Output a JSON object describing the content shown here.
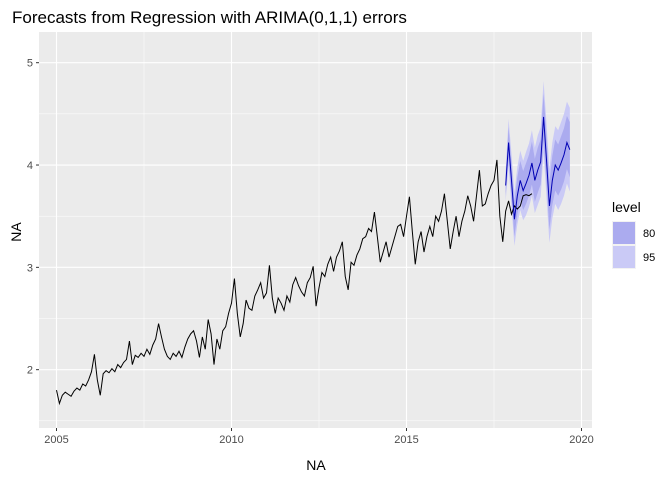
{
  "chart_data": {
    "type": "line",
    "title": "Forecasts from Regression with ARIMA(0,1,1) errors",
    "xlabel": "NA",
    "ylabel": "NA",
    "xlim": [
      2004.5,
      2020.3
    ],
    "ylim": [
      1.43,
      5.3
    ],
    "x_ticks": [
      2005,
      2010,
      2015,
      2020
    ],
    "y_ticks": [
      2,
      3,
      4,
      5
    ],
    "grid": true,
    "legend": {
      "title": "level",
      "position": "right",
      "entries": [
        {
          "label": "80",
          "color": "#ababef"
        },
        {
          "label": "95",
          "color": "#cacaf6"
        }
      ]
    },
    "colors": {
      "panel_bg": "#ebebeb",
      "grid_major": "#ffffff",
      "history_line": "#000000",
      "forecast_line": "#0000b3",
      "band80": "#ababef",
      "band95": "#cacaf6"
    },
    "series": [
      {
        "name": "history",
        "start": 2005.0,
        "frequency": 12,
        "values": [
          1.8,
          1.67,
          1.75,
          1.78,
          1.76,
          1.74,
          1.79,
          1.82,
          1.8,
          1.86,
          1.84,
          1.9,
          1.98,
          2.15,
          1.9,
          1.75,
          1.96,
          1.99,
          1.97,
          2.01,
          1.98,
          2.05,
          2.02,
          2.07,
          2.1,
          2.28,
          2.05,
          2.14,
          2.12,
          2.16,
          2.13,
          2.2,
          2.15,
          2.24,
          2.3,
          2.45,
          2.32,
          2.2,
          2.13,
          2.1,
          2.16,
          2.13,
          2.18,
          2.12,
          2.22,
          2.3,
          2.35,
          2.38,
          2.28,
          2.12,
          2.32,
          2.2,
          2.49,
          2.35,
          2.05,
          2.3,
          2.2,
          2.38,
          2.42,
          2.55,
          2.65,
          2.89,
          2.55,
          2.32,
          2.45,
          2.68,
          2.6,
          2.58,
          2.72,
          2.78,
          2.85,
          2.7,
          2.75,
          3.02,
          2.7,
          2.55,
          2.7,
          2.65,
          2.58,
          2.72,
          2.66,
          2.83,
          2.9,
          2.82,
          2.76,
          2.72,
          2.85,
          2.9,
          3.01,
          2.62,
          2.8,
          2.95,
          2.91,
          3.03,
          3.1,
          2.96,
          3.1,
          3.16,
          3.25,
          2.91,
          2.78,
          3.05,
          3.02,
          3.12,
          3.18,
          3.28,
          3.3,
          3.38,
          3.35,
          3.54,
          3.3,
          3.05,
          3.15,
          3.25,
          3.1,
          3.2,
          3.3,
          3.4,
          3.42,
          3.3,
          3.5,
          3.69,
          3.35,
          3.03,
          3.25,
          3.35,
          3.15,
          3.3,
          3.4,
          3.3,
          3.5,
          3.45,
          3.55,
          3.72,
          3.45,
          3.18,
          3.35,
          3.5,
          3.3,
          3.45,
          3.55,
          3.7,
          3.6,
          3.45,
          3.7,
          3.95,
          3.6,
          3.62,
          3.72,
          3.8,
          3.85,
          4.05,
          3.5,
          3.25,
          3.55,
          3.65,
          3.52,
          3.6,
          3.57,
          3.6,
          3.7,
          3.71,
          3.7,
          3.72
        ]
      },
      {
        "name": "forecast",
        "start": 2017.8333,
        "frequency": 12,
        "values": [
          3.8,
          4.22,
          3.85,
          3.47,
          3.7,
          3.85,
          3.75,
          3.82,
          3.9,
          4.02,
          3.85,
          3.95,
          4.03,
          4.47,
          4.05,
          3.6,
          3.85,
          4.0,
          3.95,
          4.02,
          4.1,
          4.22,
          4.15
        ],
        "lo80": [
          3.7,
          4.07,
          3.68,
          3.3,
          3.52,
          3.66,
          3.56,
          3.62,
          3.7,
          3.81,
          3.64,
          3.73,
          3.81,
          4.24,
          3.82,
          3.37,
          3.61,
          3.75,
          3.7,
          3.76,
          3.84,
          3.96,
          3.88
        ],
        "hi80": [
          3.9,
          4.37,
          4.02,
          3.64,
          3.88,
          4.04,
          3.94,
          4.02,
          4.1,
          4.23,
          4.06,
          4.17,
          4.25,
          4.7,
          4.28,
          3.83,
          4.09,
          4.25,
          4.2,
          4.28,
          4.36,
          4.48,
          4.42
        ],
        "lo95": [
          3.65,
          3.99,
          3.59,
          3.21,
          3.42,
          3.56,
          3.46,
          3.51,
          3.59,
          3.7,
          3.53,
          3.61,
          3.69,
          4.12,
          3.69,
          3.24,
          3.48,
          3.62,
          3.56,
          3.62,
          3.7,
          3.82,
          3.74
        ],
        "hi95": [
          3.95,
          4.45,
          4.11,
          3.73,
          3.98,
          4.14,
          4.04,
          4.13,
          4.21,
          4.34,
          4.17,
          4.29,
          4.37,
          4.82,
          4.41,
          3.96,
          4.22,
          4.38,
          4.34,
          4.42,
          4.5,
          4.62,
          4.56
        ]
      }
    ]
  }
}
